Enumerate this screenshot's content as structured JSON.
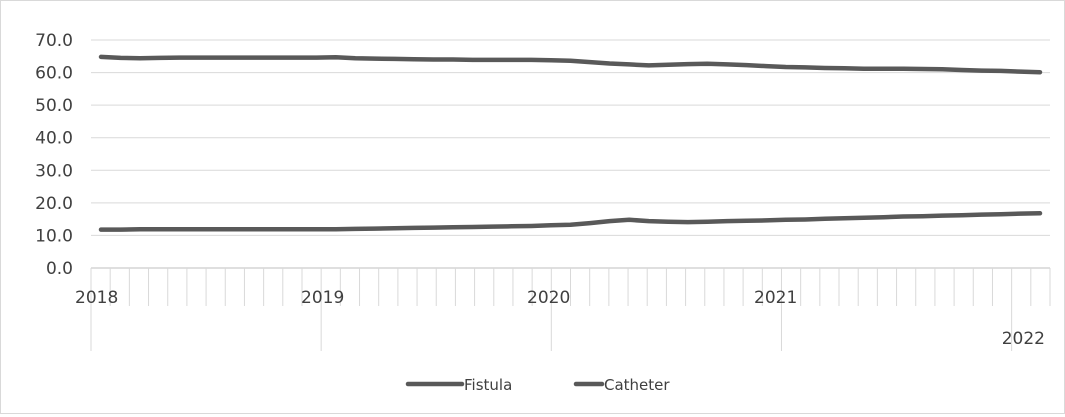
{
  "chart_data": {
    "type": "line",
    "title": "",
    "xlabel": "",
    "ylabel": "",
    "ylim": [
      0,
      70
    ],
    "y_ticks": [
      "70.0",
      "60.0",
      "50.0",
      "40.0",
      "30.0",
      "20.0",
      "10.0",
      "0.0"
    ],
    "x_year_labels": [
      "2018",
      "2019",
      "2020",
      "2021",
      "2022"
    ],
    "x_points": 49,
    "grid": true,
    "legend_position": "bottom",
    "series": [
      {
        "name": "Fistula",
        "color": "#595959",
        "values": [
          11.8,
          11.8,
          11.9,
          11.9,
          11.9,
          11.9,
          11.9,
          11.9,
          11.9,
          11.9,
          11.9,
          11.9,
          11.9,
          12.0,
          12.1,
          12.2,
          12.3,
          12.4,
          12.5,
          12.6,
          12.7,
          12.8,
          12.9,
          13.1,
          13.3,
          13.8,
          14.4,
          14.8,
          14.4,
          14.2,
          14.1,
          14.2,
          14.4,
          14.5,
          14.6,
          14.8,
          14.9,
          15.1,
          15.3,
          15.4,
          15.6,
          15.8,
          15.9,
          16.1,
          16.2,
          16.4,
          16.5,
          16.7,
          16.8
        ]
      },
      {
        "name": "Catheter",
        "color": "#595959",
        "values": [
          64.8,
          64.5,
          64.4,
          64.5,
          64.6,
          64.6,
          64.6,
          64.6,
          64.6,
          64.6,
          64.6,
          64.6,
          64.7,
          64.4,
          64.3,
          64.2,
          64.1,
          64.0,
          64.0,
          63.9,
          63.9,
          63.9,
          63.9,
          63.8,
          63.6,
          63.2,
          62.8,
          62.5,
          62.2,
          62.4,
          62.6,
          62.7,
          62.5,
          62.3,
          62.0,
          61.7,
          61.6,
          61.4,
          61.3,
          61.2,
          61.2,
          61.2,
          61.1,
          61.0,
          60.8,
          60.6,
          60.5,
          60.3,
          60.1
        ]
      }
    ]
  }
}
